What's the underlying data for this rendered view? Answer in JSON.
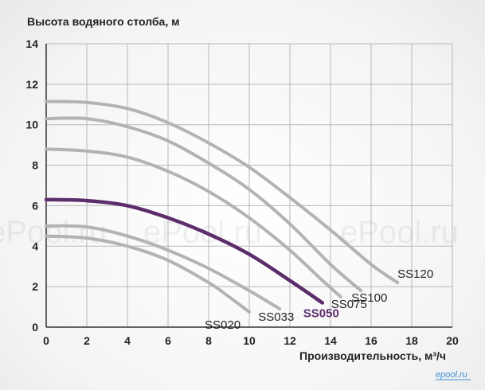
{
  "chart_data": {
    "type": "line",
    "ylabel": "Высота водяного столба, м",
    "xlabel": "Производительность, м³/ч",
    "xlim": [
      0,
      20
    ],
    "ylim": [
      0,
      14
    ],
    "x_ticks": [
      0,
      2,
      4,
      6,
      8,
      10,
      12,
      14,
      16,
      18,
      20
    ],
    "y_ticks": [
      0,
      2,
      4,
      6,
      8,
      10,
      12,
      14
    ],
    "grid": true,
    "series": [
      {
        "name": "SS020",
        "color": "#b3b3b3",
        "highlight": false,
        "points": [
          [
            0,
            4.5
          ],
          [
            2,
            4.4
          ],
          [
            4,
            4.0
          ],
          [
            6,
            3.3
          ],
          [
            8,
            2.2
          ],
          [
            9,
            1.5
          ],
          [
            10,
            0.75
          ]
        ]
      },
      {
        "name": "SS033",
        "color": "#b3b3b3",
        "highlight": false,
        "points": [
          [
            0,
            5.0
          ],
          [
            2,
            4.95
          ],
          [
            4,
            4.5
          ],
          [
            6,
            3.8
          ],
          [
            8,
            2.9
          ],
          [
            10,
            1.8
          ],
          [
            11.5,
            0.9
          ]
        ]
      },
      {
        "name": "SS050",
        "color": "#5b2d6b",
        "highlight": true,
        "points": [
          [
            0,
            6.3
          ],
          [
            2,
            6.25
          ],
          [
            4,
            6.0
          ],
          [
            6,
            5.4
          ],
          [
            8,
            4.6
          ],
          [
            10,
            3.6
          ],
          [
            12,
            2.3
          ],
          [
            13.6,
            1.2
          ]
        ]
      },
      {
        "name": "SS075",
        "color": "#b3b3b3",
        "highlight": false,
        "points": [
          [
            0,
            8.8
          ],
          [
            2,
            8.7
          ],
          [
            4,
            8.4
          ],
          [
            6,
            7.7
          ],
          [
            8,
            6.7
          ],
          [
            10,
            5.4
          ],
          [
            12,
            3.8
          ],
          [
            13.5,
            2.4
          ],
          [
            14.5,
            1.5
          ]
        ]
      },
      {
        "name": "SS100",
        "color": "#b3b3b3",
        "highlight": false,
        "points": [
          [
            0,
            10.3
          ],
          [
            2,
            10.3
          ],
          [
            4,
            9.9
          ],
          [
            6,
            9.2
          ],
          [
            8,
            8.1
          ],
          [
            10,
            6.8
          ],
          [
            12,
            5.1
          ],
          [
            14,
            3.1
          ],
          [
            15.5,
            1.8
          ]
        ]
      },
      {
        "name": "SS120",
        "color": "#b3b3b3",
        "highlight": false,
        "points": [
          [
            0,
            11.15
          ],
          [
            2,
            11.1
          ],
          [
            4,
            10.8
          ],
          [
            6,
            10.1
          ],
          [
            8,
            9.1
          ],
          [
            10,
            7.9
          ],
          [
            12,
            6.4
          ],
          [
            14,
            4.8
          ],
          [
            16,
            3.1
          ],
          [
            17.3,
            2.2
          ]
        ]
      }
    ]
  },
  "watermarks": [
    "ePool.ru",
    "ePool.ru",
    "ePool.ru"
  ],
  "logo": "epool.ru"
}
